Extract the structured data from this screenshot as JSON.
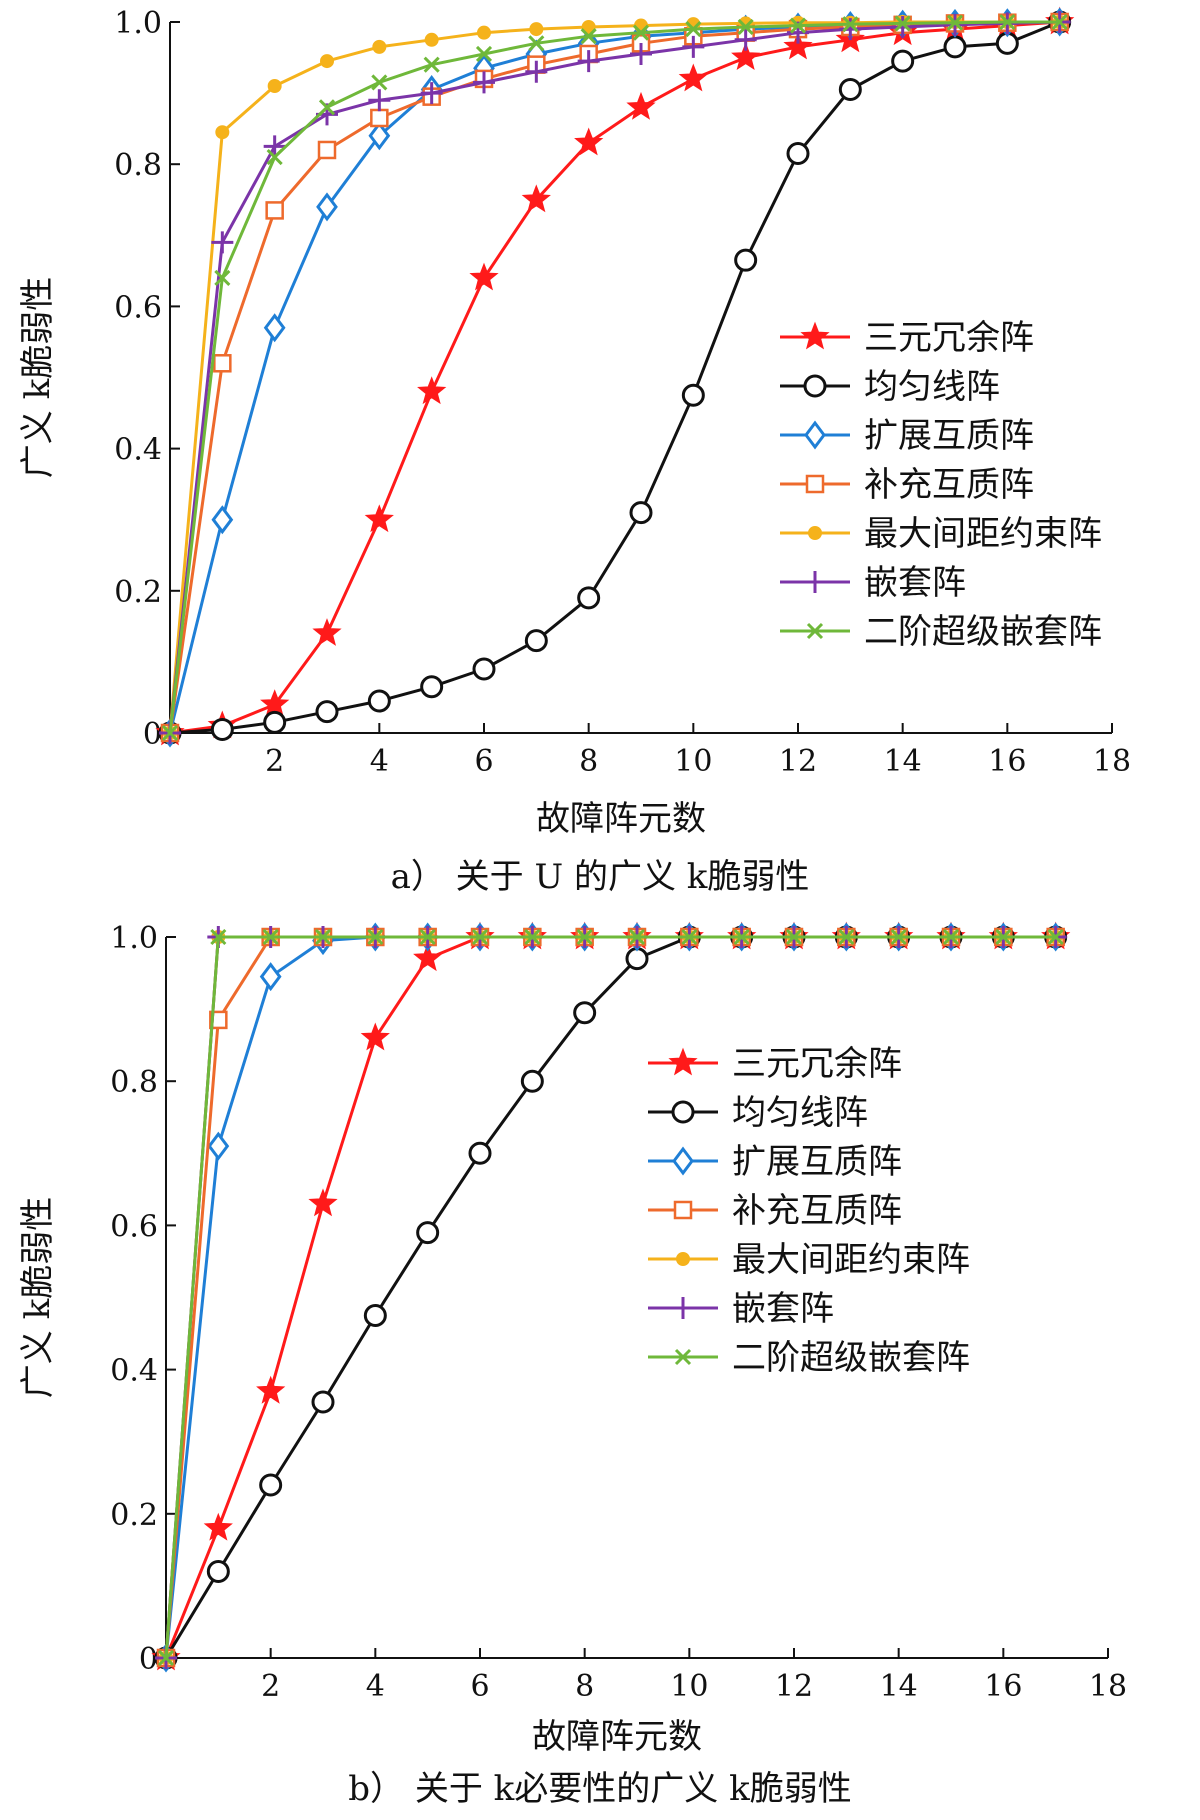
{
  "chart_data": [
    {
      "type": "line",
      "caption": "a）   关于 U 的广义 k脆弱性",
      "xlabel": "故障阵元数",
      "ylabel": "广义 k脆弱性",
      "xlim": [
        0,
        18
      ],
      "ylim": [
        0,
        1.0
      ],
      "xticks": [
        "2",
        "4",
        "6",
        "8",
        "10",
        "12",
        "14",
        "16",
        "18"
      ],
      "yticks": [
        "0",
        "0.2",
        "0.4",
        "0.6",
        "0.8",
        "1.0"
      ],
      "grid": false,
      "legend_position": "right-middle",
      "x": [
        0,
        1,
        2,
        3,
        4,
        5,
        6,
        7,
        8,
        9,
        10,
        11,
        12,
        13,
        14,
        15,
        16,
        17
      ],
      "series": [
        {
          "name": "三元冗余阵",
          "color": "#ff1a1a",
          "marker": "star",
          "values": [
            0,
            0.01,
            0.04,
            0.14,
            0.3,
            0.48,
            0.64,
            0.75,
            0.83,
            0.88,
            0.92,
            0.95,
            0.965,
            0.975,
            0.985,
            0.99,
            0.995,
            1.0
          ]
        },
        {
          "name": "均匀线阵",
          "color": "#111111",
          "marker": "circle",
          "values": [
            0,
            0.005,
            0.015,
            0.03,
            0.045,
            0.065,
            0.09,
            0.13,
            0.19,
            0.31,
            0.475,
            0.665,
            0.815,
            0.905,
            0.945,
            0.965,
            0.97,
            1.0
          ]
        },
        {
          "name": "扩展互质阵",
          "color": "#1f7fd6",
          "marker": "diamond",
          "values": [
            0,
            0.3,
            0.57,
            0.74,
            0.84,
            0.905,
            0.935,
            0.955,
            0.97,
            0.98,
            0.985,
            0.99,
            0.993,
            0.995,
            0.997,
            0.998,
            0.999,
            1.0
          ]
        },
        {
          "name": "补充互质阵",
          "color": "#ee6a2c",
          "marker": "square",
          "values": [
            0,
            0.52,
            0.735,
            0.82,
            0.865,
            0.895,
            0.92,
            0.94,
            0.955,
            0.97,
            0.98,
            0.985,
            0.99,
            0.993,
            0.996,
            0.998,
            0.999,
            1.0
          ]
        },
        {
          "name": "最大间距约束阵",
          "color": "#f5b21b",
          "marker": "dot",
          "values": [
            0,
            0.845,
            0.91,
            0.945,
            0.965,
            0.975,
            0.985,
            0.99,
            0.993,
            0.995,
            0.997,
            0.998,
            0.999,
            0.999,
            1.0,
            1.0,
            1.0,
            1.0
          ]
        },
        {
          "name": "嵌套阵",
          "color": "#7b34a8",
          "marker": "plus",
          "values": [
            0,
            0.69,
            0.825,
            0.87,
            0.89,
            0.9,
            0.915,
            0.93,
            0.945,
            0.955,
            0.965,
            0.975,
            0.985,
            0.99,
            0.993,
            0.996,
            0.998,
            1.0
          ]
        },
        {
          "name": "二阶超级嵌套阵",
          "color": "#6fb83a",
          "marker": "x",
          "values": [
            0,
            0.64,
            0.81,
            0.88,
            0.915,
            0.94,
            0.955,
            0.97,
            0.98,
            0.985,
            0.99,
            0.993,
            0.995,
            0.997,
            0.998,
            0.999,
            1.0,
            1.0
          ]
        }
      ]
    },
    {
      "type": "line",
      "caption": "b）   关于 k必要性的广义 k脆弱性",
      "xlabel": "故障阵元数",
      "ylabel": "广义 k脆弱性",
      "xlim": [
        0,
        18
      ],
      "ylim": [
        0,
        1.0
      ],
      "xticks": [
        "2",
        "4",
        "6",
        "8",
        "10",
        "12",
        "14",
        "16",
        "18"
      ],
      "yticks": [
        "0",
        "0.2",
        "0.4",
        "0.6",
        "0.8",
        "1.0"
      ],
      "grid": false,
      "legend_position": "center-right",
      "x": [
        0,
        1,
        2,
        3,
        4,
        5,
        6,
        7,
        8,
        9,
        10,
        11,
        12,
        13,
        14,
        15,
        16,
        17
      ],
      "series": [
        {
          "name": "三元冗余阵",
          "color": "#ff1a1a",
          "marker": "star",
          "values": [
            0,
            0.18,
            0.37,
            0.63,
            0.86,
            0.97,
            1.0,
            1.0,
            1.0,
            1.0,
            1.0,
            1.0,
            1.0,
            1.0,
            1.0,
            1.0,
            1.0,
            1.0
          ]
        },
        {
          "name": "均匀线阵",
          "color": "#111111",
          "marker": "circle",
          "values": [
            0,
            0.12,
            0.24,
            0.355,
            0.475,
            0.59,
            0.7,
            0.8,
            0.895,
            0.97,
            1.0,
            1.0,
            1.0,
            1.0,
            1.0,
            1.0,
            1.0,
            1.0
          ]
        },
        {
          "name": "扩展互质阵",
          "color": "#1f7fd6",
          "marker": "diamond",
          "values": [
            0,
            0.71,
            0.945,
            0.995,
            1.0,
            1.0,
            1.0,
            1.0,
            1.0,
            1.0,
            1.0,
            1.0,
            1.0,
            1.0,
            1.0,
            1.0,
            1.0,
            1.0
          ]
        },
        {
          "name": "补充互质阵",
          "color": "#ee6a2c",
          "marker": "square",
          "values": [
            0,
            0.885,
            1.0,
            1.0,
            1.0,
            1.0,
            1.0,
            1.0,
            1.0,
            1.0,
            1.0,
            1.0,
            1.0,
            1.0,
            1.0,
            1.0,
            1.0,
            1.0
          ]
        },
        {
          "name": "最大间距约束阵",
          "color": "#f5b21b",
          "marker": "dot",
          "values": [
            0,
            1.0,
            1.0,
            1.0,
            1.0,
            1.0,
            1.0,
            1.0,
            1.0,
            1.0,
            1.0,
            1.0,
            1.0,
            1.0,
            1.0,
            1.0,
            1.0,
            1.0
          ]
        },
        {
          "name": "嵌套阵",
          "color": "#7b34a8",
          "marker": "plus",
          "values": [
            0,
            1.0,
            1.0,
            1.0,
            1.0,
            1.0,
            1.0,
            1.0,
            1.0,
            1.0,
            1.0,
            1.0,
            1.0,
            1.0,
            1.0,
            1.0,
            1.0,
            1.0
          ]
        },
        {
          "name": "二阶超级嵌套阵",
          "color": "#6fb83a",
          "marker": "x",
          "values": [
            0,
            1.0,
            1.0,
            1.0,
            1.0,
            1.0,
            1.0,
            1.0,
            1.0,
            1.0,
            1.0,
            1.0,
            1.0,
            1.0,
            1.0,
            1.0,
            1.0,
            1.0
          ]
        }
      ]
    }
  ]
}
